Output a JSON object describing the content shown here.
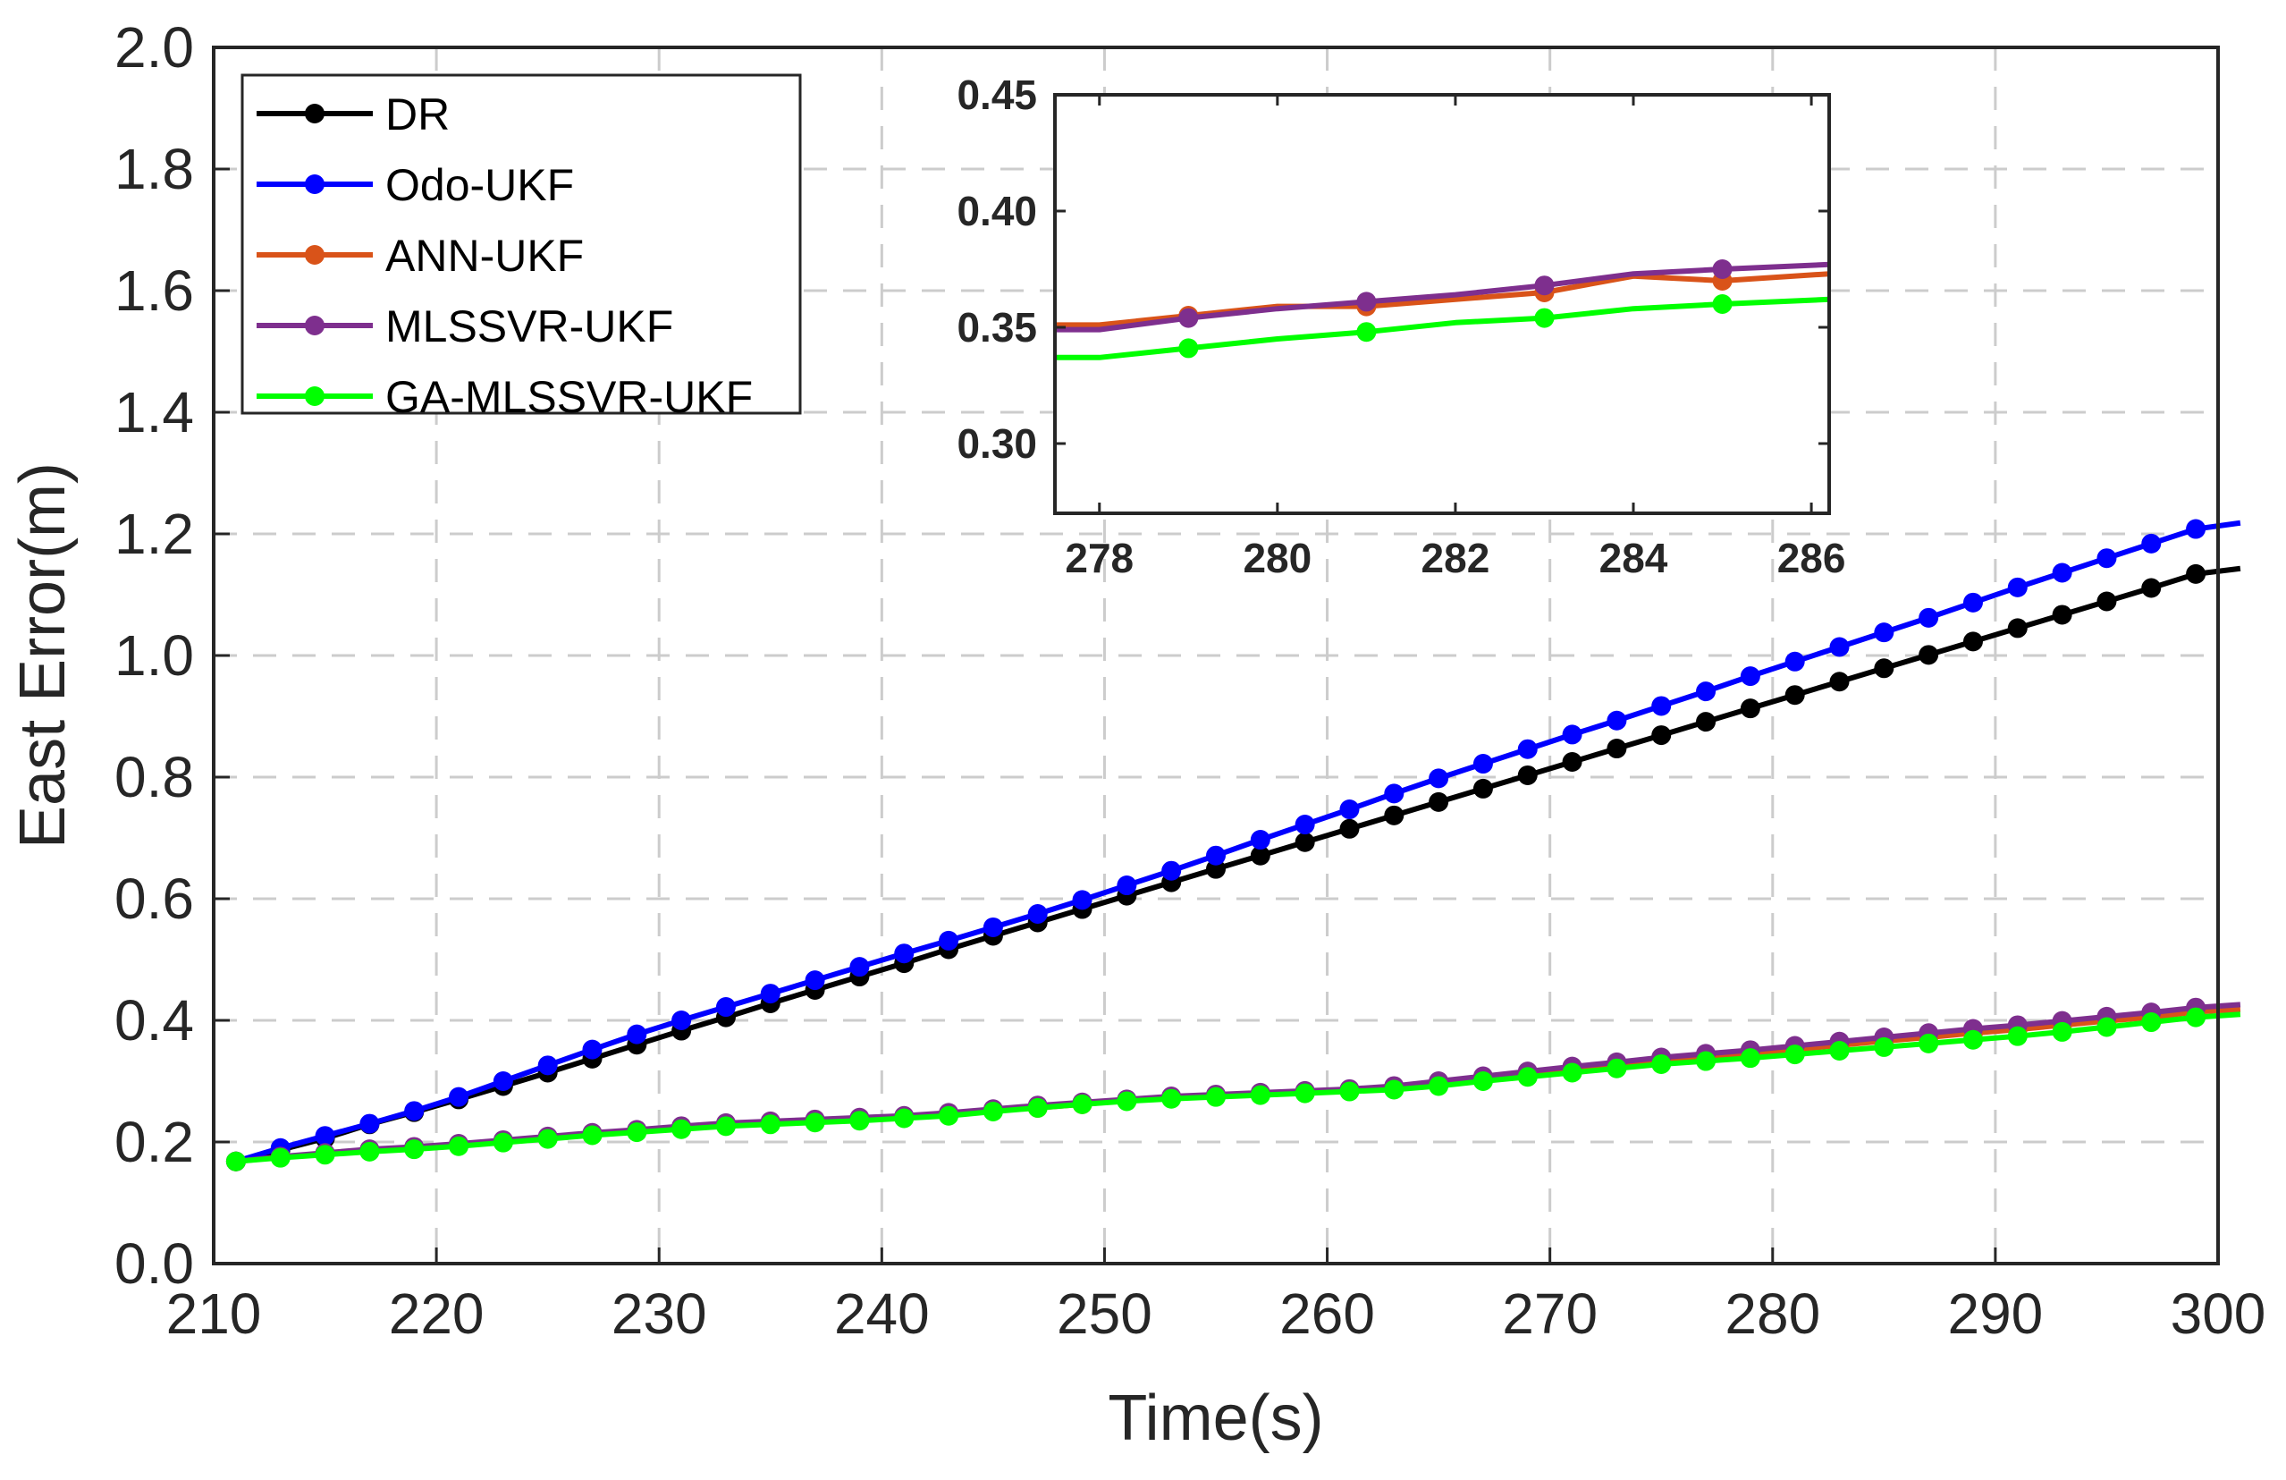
{
  "chart_data": [
    {
      "type": "line",
      "id": "main",
      "xlabel": "Time(s)",
      "ylabel": "East Error(m)",
      "xlim": [
        210,
        300
      ],
      "ylim": [
        0,
        2
      ],
      "xticks": [
        "210",
        "220",
        "230",
        "240",
        "250",
        "260",
        "270",
        "280",
        "290",
        "300"
      ],
      "yticks": [
        "0.0",
        "0.2",
        "0.4",
        "0.6",
        "0.8",
        "1.0",
        "1.2",
        "1.4",
        "1.6",
        "1.8",
        "2.0"
      ],
      "grid": true,
      "legend_position": "top-left",
      "x_start": 211,
      "x_step": 2,
      "series": [
        {
          "name": "DR",
          "color": "#000000",
          "values": [
            0.168,
            0.187,
            0.206,
            0.229,
            0.249,
            0.27,
            0.292,
            0.314,
            0.337,
            0.36,
            0.383,
            0.405,
            0.428,
            0.45,
            0.472,
            0.494,
            0.517,
            0.539,
            0.561,
            0.583,
            0.605,
            0.627,
            0.649,
            0.671,
            0.693,
            0.715,
            0.737,
            0.759,
            0.781,
            0.803,
            0.825,
            0.847,
            0.869,
            0.891,
            0.913,
            0.935,
            0.957,
            0.979,
            1.001,
            1.023,
            1.045,
            1.067,
            1.089,
            1.111,
            1.134,
            1.143
          ]
        },
        {
          "name": "Odo-UKF",
          "color": "#0000ff",
          "values": [
            0.168,
            0.19,
            0.21,
            0.23,
            0.251,
            0.274,
            0.3,
            0.326,
            0.352,
            0.377,
            0.4,
            0.422,
            0.444,
            0.466,
            0.488,
            0.51,
            0.531,
            0.553,
            0.575,
            0.598,
            0.622,
            0.646,
            0.671,
            0.697,
            0.722,
            0.747,
            0.773,
            0.798,
            0.822,
            0.846,
            0.87,
            0.893,
            0.917,
            0.941,
            0.966,
            0.99,
            1.014,
            1.038,
            1.062,
            1.087,
            1.112,
            1.136,
            1.16,
            1.184,
            1.208,
            1.218
          ]
        },
        {
          "name": "ANN-UKF",
          "color": "#d95319",
          "values": [
            0.168,
            0.175,
            0.181,
            0.187,
            0.191,
            0.196,
            0.201,
            0.207,
            0.212,
            0.218,
            0.223,
            0.229,
            0.232,
            0.235,
            0.239,
            0.242,
            0.246,
            0.252,
            0.256,
            0.262,
            0.268,
            0.273,
            0.276,
            0.278,
            0.281,
            0.284,
            0.288,
            0.295,
            0.302,
            0.311,
            0.318,
            0.325,
            0.333,
            0.339,
            0.345,
            0.352,
            0.359,
            0.366,
            0.372,
            0.379,
            0.385,
            0.392,
            0.399,
            0.405,
            0.414,
            0.418
          ]
        },
        {
          "name": "MLSSVR-UKF",
          "color": "#7e2f8e",
          "values": [
            0.168,
            0.176,
            0.182,
            0.188,
            0.192,
            0.197,
            0.203,
            0.209,
            0.215,
            0.22,
            0.226,
            0.231,
            0.234,
            0.237,
            0.24,
            0.243,
            0.248,
            0.254,
            0.26,
            0.265,
            0.27,
            0.275,
            0.278,
            0.281,
            0.284,
            0.287,
            0.292,
            0.3,
            0.308,
            0.316,
            0.324,
            0.331,
            0.339,
            0.345,
            0.351,
            0.358,
            0.365,
            0.372,
            0.379,
            0.386,
            0.392,
            0.399,
            0.406,
            0.413,
            0.421,
            0.426
          ]
        },
        {
          "name": "GA-MLSSVR-UKF",
          "color": "#00ff00",
          "values": [
            0.168,
            0.174,
            0.179,
            0.184,
            0.188,
            0.193,
            0.199,
            0.205,
            0.211,
            0.216,
            0.221,
            0.226,
            0.229,
            0.232,
            0.235,
            0.239,
            0.243,
            0.25,
            0.256,
            0.262,
            0.267,
            0.271,
            0.274,
            0.277,
            0.28,
            0.283,
            0.286,
            0.292,
            0.3,
            0.307,
            0.314,
            0.321,
            0.328,
            0.333,
            0.338,
            0.344,
            0.35,
            0.356,
            0.362,
            0.368,
            0.374,
            0.381,
            0.389,
            0.397,
            0.405,
            0.41
          ]
        }
      ]
    },
    {
      "type": "line",
      "id": "inset",
      "xlim": [
        277.5,
        286.2
      ],
      "ylim": [
        0.27,
        0.45
      ],
      "xticks": [
        "278",
        "280",
        "282",
        "284",
        "286"
      ],
      "yticks": [
        "0.30",
        "0.35",
        "0.40",
        "0.45"
      ],
      "grid": false,
      "series": [
        {
          "name": "ANN-UKF",
          "color": "#d95319",
          "points": [
            [
              277.5,
              0.351
            ],
            [
              278,
              0.351
            ],
            [
              279,
              0.355
            ],
            [
              280,
              0.359
            ],
            [
              281,
              0.359
            ],
            [
              282,
              0.362
            ],
            [
              283,
              0.365
            ],
            [
              284,
              0.372
            ],
            [
              285,
              0.37
            ],
            [
              286.2,
              0.373
            ]
          ],
          "markers": [
            279,
            281,
            283,
            285
          ]
        },
        {
          "name": "MLSSVR-UKF",
          "color": "#7e2f8e",
          "points": [
            [
              277.5,
              0.349
            ],
            [
              278,
              0.349
            ],
            [
              279,
              0.354
            ],
            [
              280,
              0.358
            ],
            [
              281,
              0.361
            ],
            [
              282,
              0.364
            ],
            [
              283,
              0.368
            ],
            [
              284,
              0.373
            ],
            [
              285,
              0.375
            ],
            [
              286.2,
              0.377
            ]
          ],
          "markers": [
            279,
            281,
            283,
            285
          ]
        },
        {
          "name": "GA-MLSSVR-UKF",
          "color": "#00ff00",
          "points": [
            [
              277.5,
              0.337
            ],
            [
              278,
              0.337
            ],
            [
              279,
              0.341
            ],
            [
              280,
              0.345
            ],
            [
              281,
              0.348
            ],
            [
              282,
              0.352
            ],
            [
              283,
              0.354
            ],
            [
              284,
              0.358
            ],
            [
              285,
              0.36
            ],
            [
              286.2,
              0.362
            ]
          ],
          "markers": [
            279,
            281,
            283,
            285
          ]
        }
      ]
    }
  ]
}
